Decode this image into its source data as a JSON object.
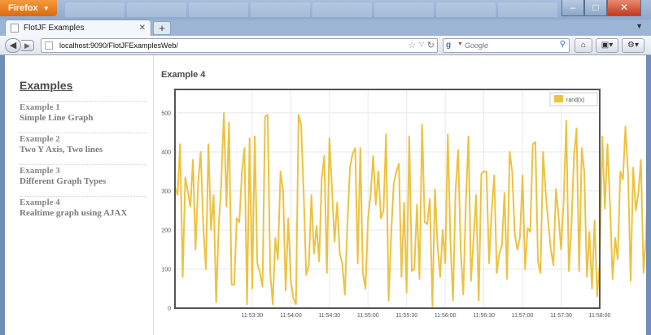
{
  "browser": {
    "app_button": "Firefox",
    "tab_title": "FlotJF Examples",
    "url": "localhost:9090/FlotJFExamplesWeb/",
    "search_placeholder": "Google",
    "search_engine_icon": "google-icon",
    "window_controls": [
      "minimize-icon",
      "maximize-icon",
      "close-icon"
    ]
  },
  "sidebar": {
    "heading": "Examples",
    "items": [
      {
        "title": "Example 1",
        "subtitle": "Simple Line Graph"
      },
      {
        "title": "Example 2",
        "subtitle": "Two Y Axis, Two lines"
      },
      {
        "title": "Example 3",
        "subtitle": "Different Graph Types"
      },
      {
        "title": "Example 4",
        "subtitle": "Realtime graph using AJAX"
      }
    ]
  },
  "main": {
    "title": "Example 4"
  },
  "chart_data": {
    "type": "line",
    "title": "",
    "xlabel": "",
    "ylabel": "",
    "series": [
      {
        "name": "rand(x)",
        "color": "#edc240",
        "x_start_seconds": 42750,
        "x_step_seconds": 2,
        "values": [
          310,
          290,
          420,
          80,
          335,
          300,
          260,
          380,
          150,
          320,
          400,
          210,
          100,
          420,
          200,
          290,
          15,
          210,
          320,
          500,
          260,
          475,
          60,
          60,
          230,
          220,
          350,
          410,
          10,
          435,
          50,
          440,
          115,
          90,
          55,
          490,
          495,
          90,
          10,
          180,
          125,
          350,
          300,
          45,
          230,
          70,
          25,
          10,
          495,
          470,
          295,
          85,
          110,
          290,
          140,
          210,
          120,
          330,
          390,
          90,
          435,
          305,
          170,
          270,
          140,
          115,
          35,
          220,
          360,
          395,
          410,
          115,
          410,
          90,
          50,
          230,
          290,
          390,
          265,
          350,
          230,
          250,
          445,
          20,
          190,
          320,
          350,
          370,
          80,
          270,
          40,
          440,
          95,
          100,
          265,
          75,
          470,
          220,
          215,
          280,
          5,
          305,
          160,
          80,
          200,
          115,
          445,
          170,
          20,
          300,
          405,
          145,
          35,
          270,
          440,
          70,
          180,
          290,
          20,
          345,
          350,
          350,
          115,
          245,
          340,
          90,
          140,
          160,
          295,
          75,
          400,
          350,
          190,
          150,
          180,
          340,
          100,
          205,
          195,
          420,
          425,
          120,
          90,
          400,
          295,
          220,
          150,
          110,
          305,
          235,
          150,
          275,
          480,
          95,
          210,
          390,
          460,
          95,
          410,
          350,
          80,
          195,
          50,
          225,
          30,
          115,
          440,
          255,
          420,
          260,
          75,
          180,
          125,
          350,
          330,
          465,
          345,
          70,
          360,
          250,
          295,
          380,
          90,
          185,
          420,
          210,
          100,
          85,
          270,
          340,
          260,
          290,
          350,
          395,
          330,
          190,
          230,
          300
        ]
      }
    ],
    "x_tick_labels": [
      "11:53:30",
      "11:54:00",
      "11:54:30",
      "11:55:00",
      "11:55:30",
      "11:56:00",
      "11:56:30",
      "11:57:00",
      "11:57:30",
      "11:58:00"
    ],
    "x_range": [
      "11:52:30",
      "11:58:00"
    ],
    "y_ticks": [
      0,
      100,
      200,
      300,
      400,
      500
    ],
    "ylim": [
      0,
      560
    ],
    "grid": true,
    "legend_position": "top-right",
    "background": "#ffffff",
    "grid_color": "#e8e8e8",
    "axis_color": "#545454"
  }
}
